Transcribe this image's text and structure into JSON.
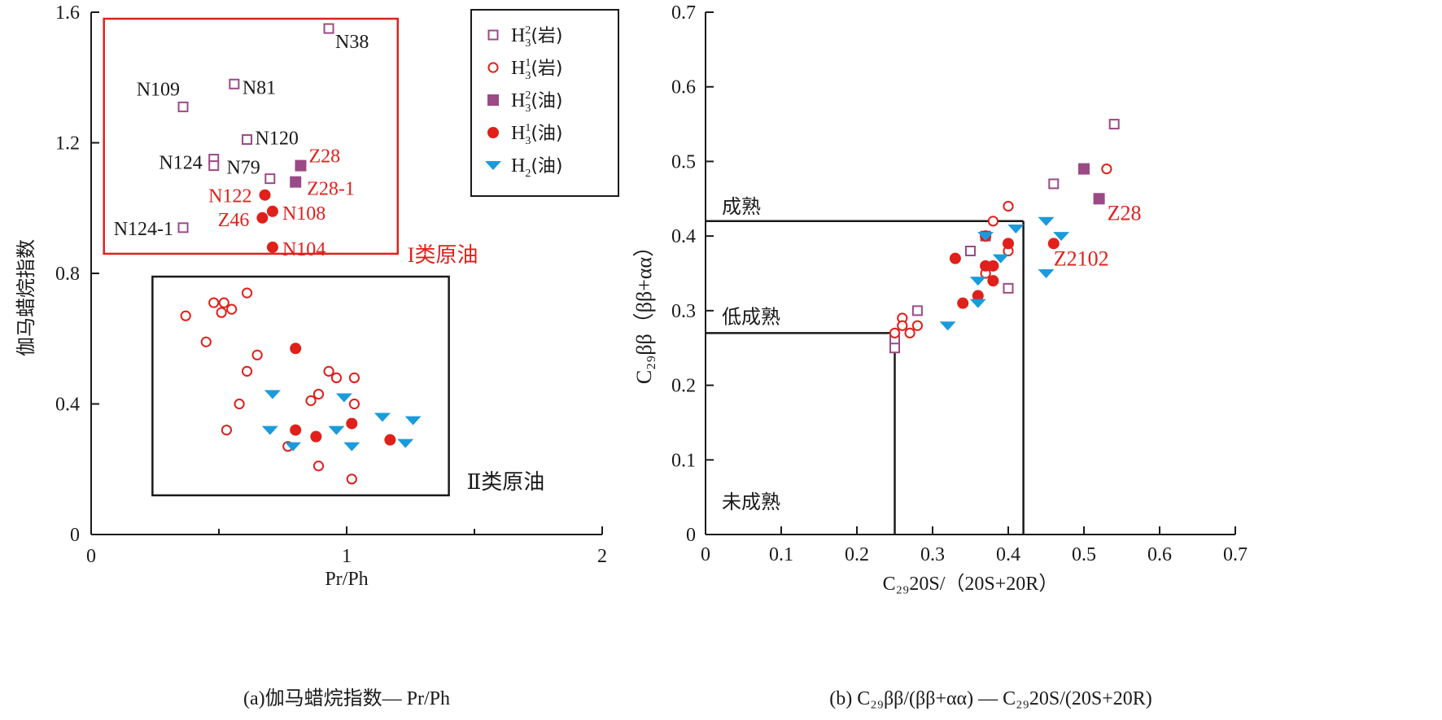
{
  "colors": {
    "h3_2": "#9b4a86",
    "h3_1": "#e0201b",
    "h2": "#1a9bdc",
    "axis": "#1a1a1a",
    "label_red": "#e0201b"
  },
  "legend": [
    {
      "key": "h3_2_rock",
      "base": "H",
      "sub": "3",
      "sup": "2",
      "tail": "(岩)",
      "marker": "square-open",
      "color_key": "h3_2"
    },
    {
      "key": "h3_1_rock",
      "base": "H",
      "sub": "3",
      "sup": "1",
      "tail": "(岩)",
      "marker": "circle-open",
      "color_key": "h3_1"
    },
    {
      "key": "h3_2_oil",
      "base": "H",
      "sub": "3",
      "sup": "2",
      "tail": "(油)",
      "marker": "square-filled",
      "color_key": "h3_2"
    },
    {
      "key": "h3_1_oil",
      "base": "H",
      "sub": "3",
      "sup": "1",
      "tail": "(油)",
      "marker": "circle-filled",
      "color_key": "h3_1"
    },
    {
      "key": "h2_oil",
      "base": "H",
      "sub": "2",
      "sup": "",
      "tail": "(油)",
      "marker": "triangle-down",
      "color_key": "h2"
    }
  ],
  "chart_data": [
    {
      "type": "scatter",
      "id": "a",
      "caption": "(a)伽马蜡烷指数— Pr/Ph",
      "xlabel": "Pr/Ph",
      "ylabel": "伽马蜡烷指数",
      "xlim": [
        0,
        2
      ],
      "ylim": [
        0,
        1.6
      ],
      "xticks": [
        0,
        1,
        2
      ],
      "xminor": [
        0.5,
        1.5
      ],
      "yticks": [
        0,
        0.4,
        0.8,
        1.2,
        1.6
      ],
      "ytick_labels": [
        "0",
        "0.4",
        "0.8",
        "1.2",
        "1.6"
      ],
      "regions": [
        {
          "label": "I类原油",
          "x0": 0.05,
          "x1": 1.2,
          "y0": 0.86,
          "y1": 1.58,
          "color": "#e0201b"
        },
        {
          "label": "Ⅱ类原油",
          "x0": 0.24,
          "x1": 1.4,
          "y0": 0.12,
          "y1": 0.79,
          "color": "#1a1a1a"
        }
      ],
      "series": [
        {
          "key": "h3_2_rock",
          "points": [
            {
              "x": 0.93,
              "y": 1.55,
              "label": "N38"
            },
            {
              "x": 0.56,
              "y": 1.38,
              "label": "N81"
            },
            {
              "x": 0.36,
              "y": 1.31,
              "label": "N109"
            },
            {
              "x": 0.61,
              "y": 1.21,
              "label": "N120"
            },
            {
              "x": 0.48,
              "y": 1.15,
              "label": "N124"
            },
            {
              "x": 0.48,
              "y": 1.13,
              "label": ""
            },
            {
              "x": 0.7,
              "y": 1.09,
              "label": "N79"
            },
            {
              "x": 0.36,
              "y": 0.94,
              "label": "N124-1"
            }
          ]
        },
        {
          "key": "h3_2_oil",
          "points": [
            {
              "x": 0.82,
              "y": 1.13,
              "label": "Z28"
            },
            {
              "x": 0.8,
              "y": 1.08,
              "label": "Z28-1"
            }
          ]
        },
        {
          "key": "h3_1_oil",
          "points": [
            {
              "x": 0.68,
              "y": 1.04,
              "label": "N122"
            },
            {
              "x": 0.71,
              "y": 0.99,
              "label": "N108"
            },
            {
              "x": 0.67,
              "y": 0.97,
              "label": "Z46"
            },
            {
              "x": 0.71,
              "y": 0.88,
              "label": "N104"
            },
            {
              "x": 0.8,
              "y": 0.57,
              "label": ""
            },
            {
              "x": 0.8,
              "y": 0.32,
              "label": ""
            },
            {
              "x": 0.88,
              "y": 0.3,
              "label": ""
            },
            {
              "x": 1.02,
              "y": 0.34,
              "label": ""
            },
            {
              "x": 1.17,
              "y": 0.29,
              "label": ""
            }
          ]
        },
        {
          "key": "h3_1_rock",
          "points": [
            {
              "x": 0.37,
              "y": 0.67,
              "label": ""
            },
            {
              "x": 0.48,
              "y": 0.71,
              "label": ""
            },
            {
              "x": 0.52,
              "y": 0.71,
              "label": ""
            },
            {
              "x": 0.51,
              "y": 0.68,
              "label": ""
            },
            {
              "x": 0.55,
              "y": 0.69,
              "label": ""
            },
            {
              "x": 0.61,
              "y": 0.74,
              "label": ""
            },
            {
              "x": 0.45,
              "y": 0.59,
              "label": ""
            },
            {
              "x": 0.65,
              "y": 0.55,
              "label": ""
            },
            {
              "x": 0.61,
              "y": 0.5,
              "label": ""
            },
            {
              "x": 0.58,
              "y": 0.4,
              "label": ""
            },
            {
              "x": 0.53,
              "y": 0.32,
              "label": ""
            },
            {
              "x": 0.86,
              "y": 0.41,
              "label": ""
            },
            {
              "x": 0.89,
              "y": 0.43,
              "label": ""
            },
            {
              "x": 0.93,
              "y": 0.5,
              "label": ""
            },
            {
              "x": 0.96,
              "y": 0.48,
              "label": ""
            },
            {
              "x": 1.03,
              "y": 0.48,
              "label": ""
            },
            {
              "x": 1.03,
              "y": 0.4,
              "label": ""
            },
            {
              "x": 0.77,
              "y": 0.27,
              "label": ""
            },
            {
              "x": 0.89,
              "y": 0.21,
              "label": ""
            },
            {
              "x": 1.02,
              "y": 0.17,
              "label": ""
            }
          ]
        },
        {
          "key": "h2_oil",
          "points": [
            {
              "x": 0.71,
              "y": 0.43,
              "label": ""
            },
            {
              "x": 0.7,
              "y": 0.32,
              "label": ""
            },
            {
              "x": 0.79,
              "y": 0.27,
              "label": ""
            },
            {
              "x": 0.96,
              "y": 0.32,
              "label": ""
            },
            {
              "x": 0.99,
              "y": 0.42,
              "label": ""
            },
            {
              "x": 1.02,
              "y": 0.27,
              "label": ""
            },
            {
              "x": 1.14,
              "y": 0.36,
              "label": ""
            },
            {
              "x": 1.23,
              "y": 0.28,
              "label": ""
            },
            {
              "x": 1.26,
              "y": 0.35,
              "label": ""
            }
          ]
        }
      ]
    },
    {
      "type": "scatter",
      "id": "b",
      "caption": "(b) C₂₉ββ/(ββ+αα) — C₂₉20S/(20S+20R)",
      "xlabel": "C₂₉20S/（20S+20R）",
      "ylabel": "C₂₉ββ（ββ+αα）",
      "xlim": [
        0,
        0.7
      ],
      "ylim": [
        0,
        0.7
      ],
      "xticks": [
        0,
        0.1,
        0.2,
        0.3,
        0.4,
        0.5,
        0.6,
        0.7
      ],
      "xtick_labels": [
        "0",
        "0.1",
        "0.2",
        "0.3",
        "0.4",
        "0.5",
        "0.6",
        "0.7"
      ],
      "yticks": [
        0,
        0.1,
        0.2,
        0.3,
        0.4,
        0.5,
        0.6,
        0.7
      ],
      "ytick_labels": [
        "0",
        "0.1",
        "0.2",
        "0.3",
        "0.4",
        "0.5",
        "0.6",
        "0.7"
      ],
      "zones": [
        {
          "label": "成熟",
          "x": 0.42,
          "y": 0.42
        },
        {
          "label": "低成熟",
          "x": 0.25,
          "y": 0.27
        },
        {
          "label": "未成熟",
          "x": 0.25,
          "y": 0.0
        }
      ],
      "series": [
        {
          "key": "h3_2_rock",
          "points": [
            {
              "x": 0.54,
              "y": 0.55,
              "label": ""
            },
            {
              "x": 0.46,
              "y": 0.47,
              "label": ""
            },
            {
              "x": 0.35,
              "y": 0.38,
              "label": ""
            },
            {
              "x": 0.37,
              "y": 0.4,
              "label": ""
            },
            {
              "x": 0.28,
              "y": 0.3,
              "label": ""
            },
            {
              "x": 0.4,
              "y": 0.33,
              "label": ""
            },
            {
              "x": 0.25,
              "y": 0.26,
              "label": ""
            },
            {
              "x": 0.25,
              "y": 0.25,
              "label": ""
            }
          ]
        },
        {
          "key": "h3_2_oil",
          "points": [
            {
              "x": 0.5,
              "y": 0.49,
              "label": ""
            },
            {
              "x": 0.52,
              "y": 0.45,
              "label": "Z28"
            }
          ]
        },
        {
          "key": "h3_1_rock",
          "points": [
            {
              "x": 0.53,
              "y": 0.49,
              "label": ""
            },
            {
              "x": 0.4,
              "y": 0.44,
              "label": ""
            },
            {
              "x": 0.38,
              "y": 0.42,
              "label": ""
            },
            {
              "x": 0.4,
              "y": 0.38,
              "label": ""
            },
            {
              "x": 0.37,
              "y": 0.35,
              "label": ""
            },
            {
              "x": 0.26,
              "y": 0.29,
              "label": ""
            },
            {
              "x": 0.26,
              "y": 0.28,
              "label": ""
            },
            {
              "x": 0.28,
              "y": 0.28,
              "label": ""
            },
            {
              "x": 0.27,
              "y": 0.27,
              "label": ""
            },
            {
              "x": 0.25,
              "y": 0.27,
              "label": ""
            }
          ]
        },
        {
          "key": "h3_1_oil",
          "points": [
            {
              "x": 0.46,
              "y": 0.39,
              "label": "Z2102"
            },
            {
              "x": 0.4,
              "y": 0.39,
              "label": ""
            },
            {
              "x": 0.37,
              "y": 0.4,
              "label": ""
            },
            {
              "x": 0.33,
              "y": 0.37,
              "label": ""
            },
            {
              "x": 0.37,
              "y": 0.36,
              "label": ""
            },
            {
              "x": 0.38,
              "y": 0.36,
              "label": ""
            },
            {
              "x": 0.38,
              "y": 0.34,
              "label": ""
            },
            {
              "x": 0.36,
              "y": 0.32,
              "label": ""
            },
            {
              "x": 0.34,
              "y": 0.31,
              "label": ""
            }
          ]
        },
        {
          "key": "h2_oil",
          "points": [
            {
              "x": 0.45,
              "y": 0.42,
              "label": ""
            },
            {
              "x": 0.41,
              "y": 0.41,
              "label": ""
            },
            {
              "x": 0.47,
              "y": 0.4,
              "label": ""
            },
            {
              "x": 0.37,
              "y": 0.4,
              "label": ""
            },
            {
              "x": 0.39,
              "y": 0.37,
              "label": ""
            },
            {
              "x": 0.45,
              "y": 0.35,
              "label": ""
            },
            {
              "x": 0.36,
              "y": 0.34,
              "label": ""
            },
            {
              "x": 0.36,
              "y": 0.31,
              "label": ""
            },
            {
              "x": 0.32,
              "y": 0.28,
              "label": ""
            }
          ]
        }
      ]
    }
  ]
}
